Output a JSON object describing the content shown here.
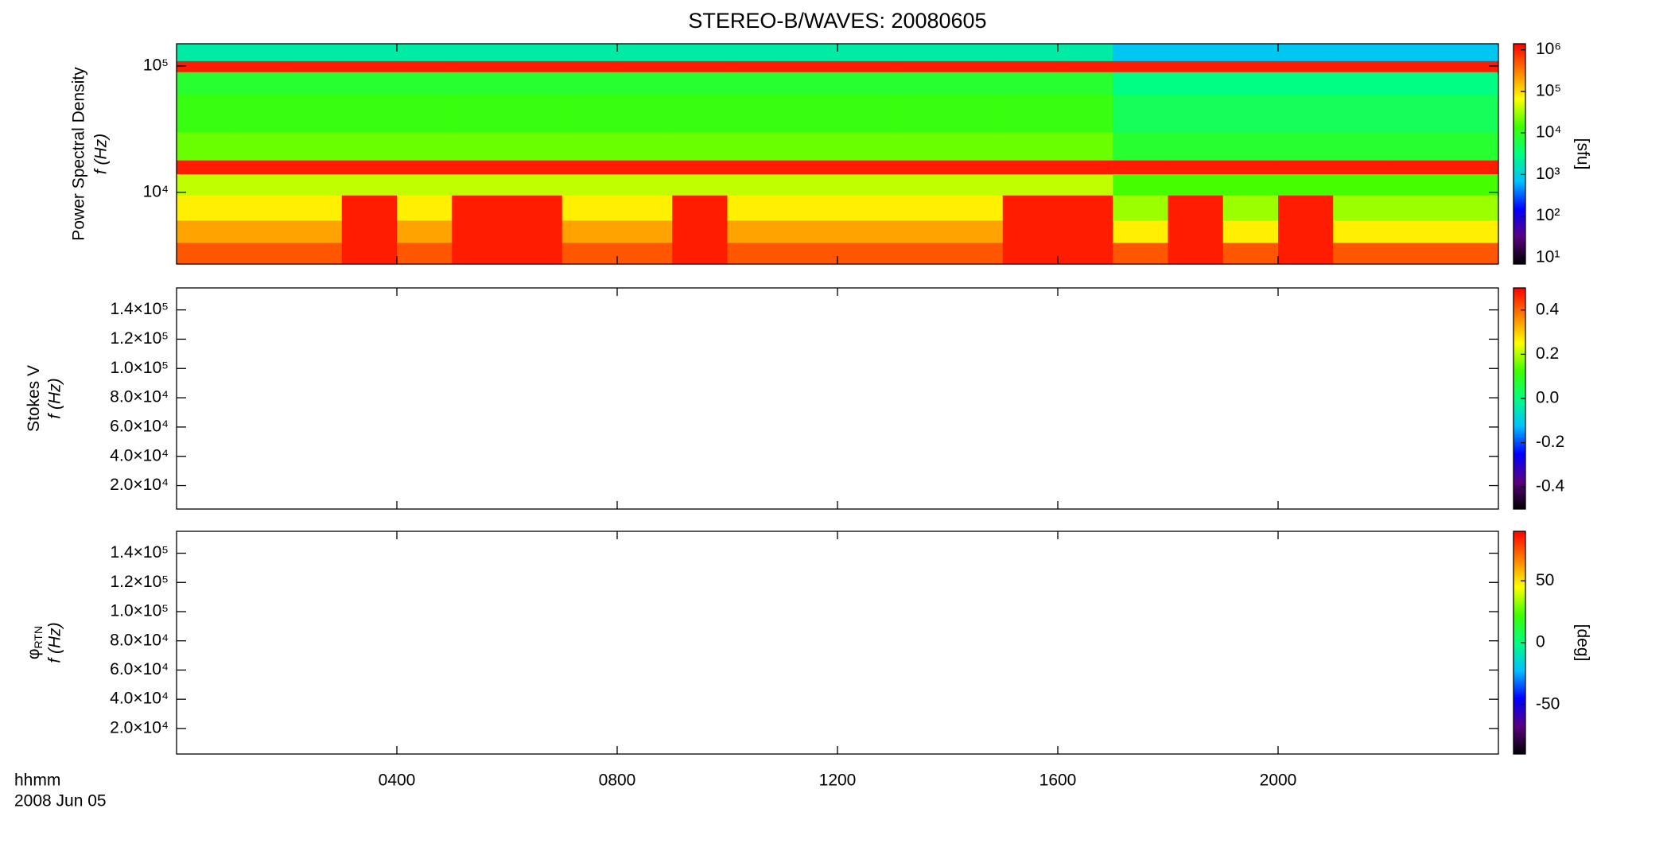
{
  "title": "STEREO-B/WAVES: 20080605",
  "xaxis": {
    "label": "hhmm",
    "date": "2008 Jun 05",
    "xlim": [
      0,
      24
    ],
    "xticks": [
      {
        "value": 4,
        "label": "0400"
      },
      {
        "value": 8,
        "label": "0800"
      },
      {
        "value": 12,
        "label": "1200"
      },
      {
        "value": 16,
        "label": "1600"
      },
      {
        "value": 20,
        "label": "2000"
      }
    ]
  },
  "chart_data": [
    {
      "type": "heatmap",
      "quantity": "Power Spectral Density",
      "ylabel": "f (Hz)",
      "ylog": true,
      "ylim": [
        2700,
        150000
      ],
      "yticks": [
        {
          "value": 10000,
          "label": "10⁴"
        },
        {
          "value": 100000,
          "label": "10⁵"
        }
      ],
      "clog": true,
      "clim": [
        7,
        1400000
      ],
      "clabel": "[sfu]",
      "cticks": [
        {
          "value": 10,
          "label": "10¹"
        },
        {
          "value": 100,
          "label": "10²"
        },
        {
          "value": 1000,
          "label": "10³"
        },
        {
          "value": 10000,
          "label": "10⁴"
        },
        {
          "value": 100000,
          "label": "10⁵"
        },
        {
          "value": 1000000,
          "label": "10⁶"
        }
      ],
      "colormap": [
        "#000000",
        "#5a0080",
        "#0000ff",
        "#00c0ff",
        "#00ff80",
        "#40ff00",
        "#ffff00",
        "#ff8000",
        "#ff0000"
      ],
      "x_bins": [
        0,
        1,
        2,
        3,
        4,
        5,
        6,
        7,
        8,
        9,
        10,
        11,
        12,
        13,
        14,
        15,
        16,
        17,
        18,
        19,
        20,
        21,
        22,
        23,
        24
      ],
      "y_bins": [
        2700,
        4000,
        6000,
        9500,
        14000,
        18000,
        30000,
        60000,
        90000,
        110000,
        150000
      ],
      "values": [
        [
          500000,
          500000,
          500000,
          1000000,
          500000,
          1000000,
          1000000,
          500000,
          500000,
          1000000,
          500000,
          500000,
          500000,
          500000,
          500000,
          1000000,
          1000000,
          500000,
          1000000,
          500000,
          1000000,
          500000,
          500000,
          500000
        ],
        [
          200000,
          200000,
          200000,
          1000000,
          200000,
          1000000,
          1000000,
          200000,
          200000,
          1000000,
          200000,
          200000,
          200000,
          200000,
          200000,
          1000000,
          1000000,
          80000,
          1000000,
          80000,
          1000000,
          80000,
          80000,
          80000
        ],
        [
          80000,
          80000,
          80000,
          1000000,
          80000,
          1000000,
          1000000,
          80000,
          80000,
          1000000,
          80000,
          80000,
          80000,
          80000,
          80000,
          1000000,
          1000000,
          30000,
          1000000,
          30000,
          1000000,
          30000,
          30000,
          30000
        ],
        [
          40000,
          40000,
          40000,
          40000,
          40000,
          40000,
          40000,
          40000,
          40000,
          40000,
          40000,
          40000,
          40000,
          40000,
          40000,
          40000,
          40000,
          15000,
          15000,
          15000,
          15000,
          15000,
          15000,
          15000
        ],
        [
          1000000,
          1000000,
          1000000,
          1000000,
          1000000,
          1000000,
          1000000,
          1000000,
          1000000,
          1000000,
          1000000,
          1000000,
          1000000,
          1000000,
          1000000,
          1000000,
          1000000,
          1000000,
          1000000,
          1000000,
          1000000,
          1000000,
          1000000,
          1000000
        ],
        [
          20000,
          20000,
          20000,
          20000,
          20000,
          20000,
          20000,
          20000,
          20000,
          20000,
          20000,
          20000,
          20000,
          20000,
          20000,
          20000,
          20000,
          8000,
          8000,
          8000,
          8000,
          8000,
          8000,
          8000
        ],
        [
          12000,
          12000,
          12000,
          12000,
          12000,
          12000,
          12000,
          12000,
          12000,
          12000,
          12000,
          12000,
          12000,
          12000,
          12000,
          12000,
          12000,
          5000,
          5000,
          5000,
          5000,
          5000,
          5000,
          5000
        ],
        [
          8000,
          8000,
          8000,
          8000,
          8000,
          8000,
          8000,
          8000,
          8000,
          8000,
          8000,
          8000,
          8000,
          8000,
          8000,
          8000,
          8000,
          3000,
          3000,
          3000,
          3000,
          3000,
          3000,
          3000
        ],
        [
          1000000,
          1000000,
          1000000,
          1000000,
          1000000,
          1000000,
          1000000,
          1000000,
          1000000,
          1000000,
          1000000,
          1000000,
          1000000,
          1000000,
          1000000,
          1000000,
          1000000,
          1000000,
          1000000,
          1000000,
          1000000,
          1000000,
          1000000,
          1000000
        ],
        [
          2000,
          2000,
          2000,
          2000,
          2000,
          2000,
          2000,
          2000,
          2000,
          2000,
          2000,
          2000,
          2000,
          2000,
          2000,
          2000,
          2000,
          800,
          800,
          800,
          800,
          800,
          800,
          800
        ]
      ]
    },
    {
      "type": "heatmap",
      "quantity": "Stokes V",
      "ylabel": "f (Hz)",
      "ylim": [
        4000,
        155000
      ],
      "yticks": [
        {
          "value": 20000,
          "label": "2.0×10⁴"
        },
        {
          "value": 40000,
          "label": "4.0×10⁴"
        },
        {
          "value": 60000,
          "label": "6.0×10⁴"
        },
        {
          "value": 80000,
          "label": "8.0×10⁴"
        },
        {
          "value": 100000,
          "label": "1.0×10⁵"
        },
        {
          "value": 120000,
          "label": "1.2×10⁵"
        },
        {
          "value": 140000,
          "label": "1.4×10⁵"
        }
      ],
      "clim": [
        -0.5,
        0.5
      ],
      "cticks": [
        {
          "value": -0.4,
          "label": "-0.4"
        },
        {
          "value": -0.2,
          "label": "-0.2"
        },
        {
          "value": 0,
          "label": "0.0"
        },
        {
          "value": 0.2,
          "label": "0.2"
        },
        {
          "value": 0.4,
          "label": "0.4"
        }
      ],
      "colormap": [
        "#000000",
        "#5a0080",
        "#0000ff",
        "#00c0ff",
        "#00ff80",
        "#40ff00",
        "#ffff00",
        "#ff8000",
        "#ff0000"
      ]
    },
    {
      "type": "heatmap",
      "quantity": "φ",
      "quantity_subscript": "RTN",
      "ylabel": "f (Hz)",
      "ylim": [
        2500,
        155000
      ],
      "yticks": [
        {
          "value": 20000,
          "label": "2.0×10⁴"
        },
        {
          "value": 40000,
          "label": "4.0×10⁴"
        },
        {
          "value": 60000,
          "label": "6.0×10⁴"
        },
        {
          "value": 80000,
          "label": "8.0×10⁴"
        },
        {
          "value": 100000,
          "label": "1.0×10⁵"
        },
        {
          "value": 120000,
          "label": "1.2×10⁵"
        },
        {
          "value": 140000,
          "label": "1.4×10⁵"
        }
      ],
      "clim": [
        -90,
        90
      ],
      "clabel": "[deg]",
      "cticks": [
        -50,
        0,
        50
      ],
      "colormap": [
        "#000000",
        "#5a0080",
        "#0000ff",
        "#00c0ff",
        "#00ff80",
        "#40ff00",
        "#ffff00",
        "#ff8000",
        "#ff0000"
      ]
    }
  ]
}
